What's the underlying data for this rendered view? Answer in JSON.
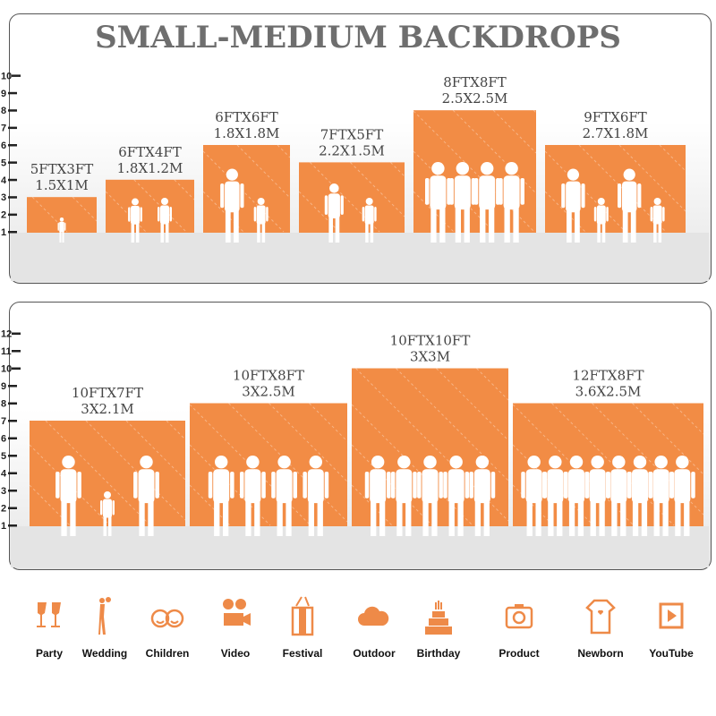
{
  "title": "SMALL-MEDIUM BACKDROPS",
  "colors": {
    "backdrop": "#f28c45",
    "title": "#6e6e6e",
    "icon": "#ee8a48"
  },
  "panels": [
    {
      "axis_ticks": [
        "1",
        "2",
        "3",
        "4",
        "5",
        "6",
        "7",
        "8",
        "9",
        "10"
      ],
      "backdrops": [
        {
          "ft": "5FTX3FT",
          "m": "1.5X1M",
          "w": 5,
          "h": 3,
          "people": 1
        },
        {
          "ft": "6FTX4FT",
          "m": "1.8X1.2M",
          "w": 6,
          "h": 4,
          "people": 2
        },
        {
          "ft": "6FTX6FT",
          "m": "1.8X1.8M",
          "w": 6,
          "h": 6,
          "people": 2
        },
        {
          "ft": "7FTX5FT",
          "m": "2.2X1.5M",
          "w": 7,
          "h": 5,
          "people": 2
        },
        {
          "ft": "8FTX8FT",
          "m": "2.5X2.5M",
          "w": 8,
          "h": 8,
          "people": 4
        },
        {
          "ft": "9FTX6FT",
          "m": "2.7X1.8M",
          "w": 9,
          "h": 6,
          "people": 4
        }
      ]
    },
    {
      "axis_ticks": [
        "1",
        "2",
        "3",
        "4",
        "5",
        "6",
        "7",
        "8",
        "9",
        "10",
        "11",
        "12"
      ],
      "backdrops": [
        {
          "ft": "10FTX7FT",
          "m": "3X2.1M",
          "w": 10,
          "h": 7,
          "people": 3
        },
        {
          "ft": "10FTX8FT",
          "m": "3X2.5M",
          "w": 10,
          "h": 8,
          "people": 4
        },
        {
          "ft": "10FTX10FT",
          "m": "3X3M",
          "w": 10,
          "h": 10,
          "people": 5
        },
        {
          "ft": "12FTX8FT",
          "m": "3.6X2.5M",
          "w": 12,
          "h": 8,
          "people": 8
        }
      ]
    }
  ],
  "uses": [
    {
      "label": "Party",
      "icon": "wine-glasses-icon"
    },
    {
      "label": "Wedding",
      "icon": "wedding-couple-icon"
    },
    {
      "label": "Children",
      "icon": "children-faces-icon"
    },
    {
      "label": "Video",
      "icon": "movie-camera-icon"
    },
    {
      "label": "Festival",
      "icon": "gift-box-icon"
    },
    {
      "label": "Outdoor",
      "icon": "cloud-icon"
    },
    {
      "label": "Birthday",
      "icon": "birthday-cake-icon"
    },
    {
      "label": "Product",
      "icon": "camera-icon"
    },
    {
      "label": "Newborn",
      "icon": "baby-onesie-icon"
    },
    {
      "label": "YouTube",
      "icon": "play-button-icon"
    }
  ]
}
